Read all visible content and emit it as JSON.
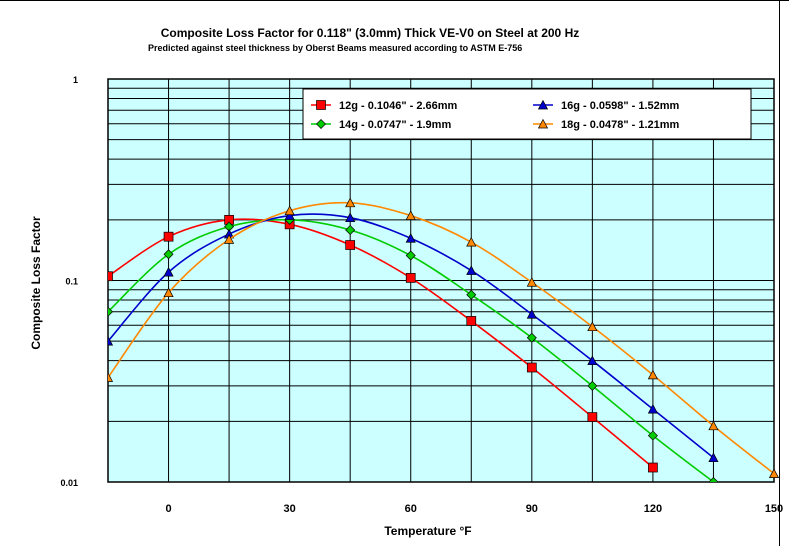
{
  "chart_data": {
    "type": "line",
    "title": "Composite Loss Factor for 0.118\" (3.0mm) Thick VE-V0 on Steel at 200 Hz",
    "subtitle": "Predicted against steel thickness by Oberst Beams measured according to ASTM E-756",
    "xlabel": "Temperature °F",
    "ylabel": "Composite Loss Factor",
    "y_scale": "log",
    "xlim": [
      -15,
      150
    ],
    "ylim": [
      0.01,
      1
    ],
    "grid": true,
    "legend_position": "top-right",
    "x_ticks": [
      0,
      30,
      60,
      90,
      120,
      150
    ],
    "x_tick_labels": [
      "0",
      "30",
      "60",
      "90",
      "120",
      "150"
    ],
    "y_ticks": [
      0.01,
      0.1,
      1
    ],
    "y_tick_labels": [
      "0.01",
      "0.1",
      "1"
    ],
    "plot_background": "#ccffff",
    "series": [
      {
        "name": "12g - 0.1046\" - 2.66mm",
        "color": "#ff0000",
        "marker": "square",
        "x": [
          -15,
          0,
          15,
          30,
          45,
          60,
          75,
          90,
          105,
          120
        ],
        "y": [
          0.105,
          0.165,
          0.2,
          0.19,
          0.15,
          0.103,
          0.063,
          0.037,
          0.021,
          0.0118
        ]
      },
      {
        "name": "14g - 0.0747\" - 1.9mm",
        "color": "#00cc00",
        "marker": "diamond",
        "x": [
          -15,
          0,
          15,
          30,
          45,
          60,
          75,
          90,
          105,
          120,
          135
        ],
        "y": [
          0.07,
          0.135,
          0.185,
          0.2,
          0.178,
          0.133,
          0.085,
          0.052,
          0.03,
          0.017,
          0.01
        ]
      },
      {
        "name": "16g - 0.0598\" - 1.52mm",
        "color": "#0000cc",
        "marker": "triangle",
        "x": [
          -15,
          0,
          15,
          30,
          45,
          60,
          75,
          90,
          105,
          120,
          135
        ],
        "y": [
          0.05,
          0.11,
          0.17,
          0.21,
          0.205,
          0.162,
          0.112,
          0.068,
          0.04,
          0.023,
          0.0132
        ]
      },
      {
        "name": "18g - 0.0478\" - 1.21mm",
        "color": "#ff8800",
        "marker": "triangle",
        "x": [
          -15,
          0,
          15,
          30,
          45,
          60,
          75,
          90,
          105,
          120,
          135,
          150
        ],
        "y": [
          0.033,
          0.087,
          0.16,
          0.222,
          0.243,
          0.21,
          0.155,
          0.098,
          0.059,
          0.034,
          0.019,
          0.011
        ]
      }
    ]
  }
}
